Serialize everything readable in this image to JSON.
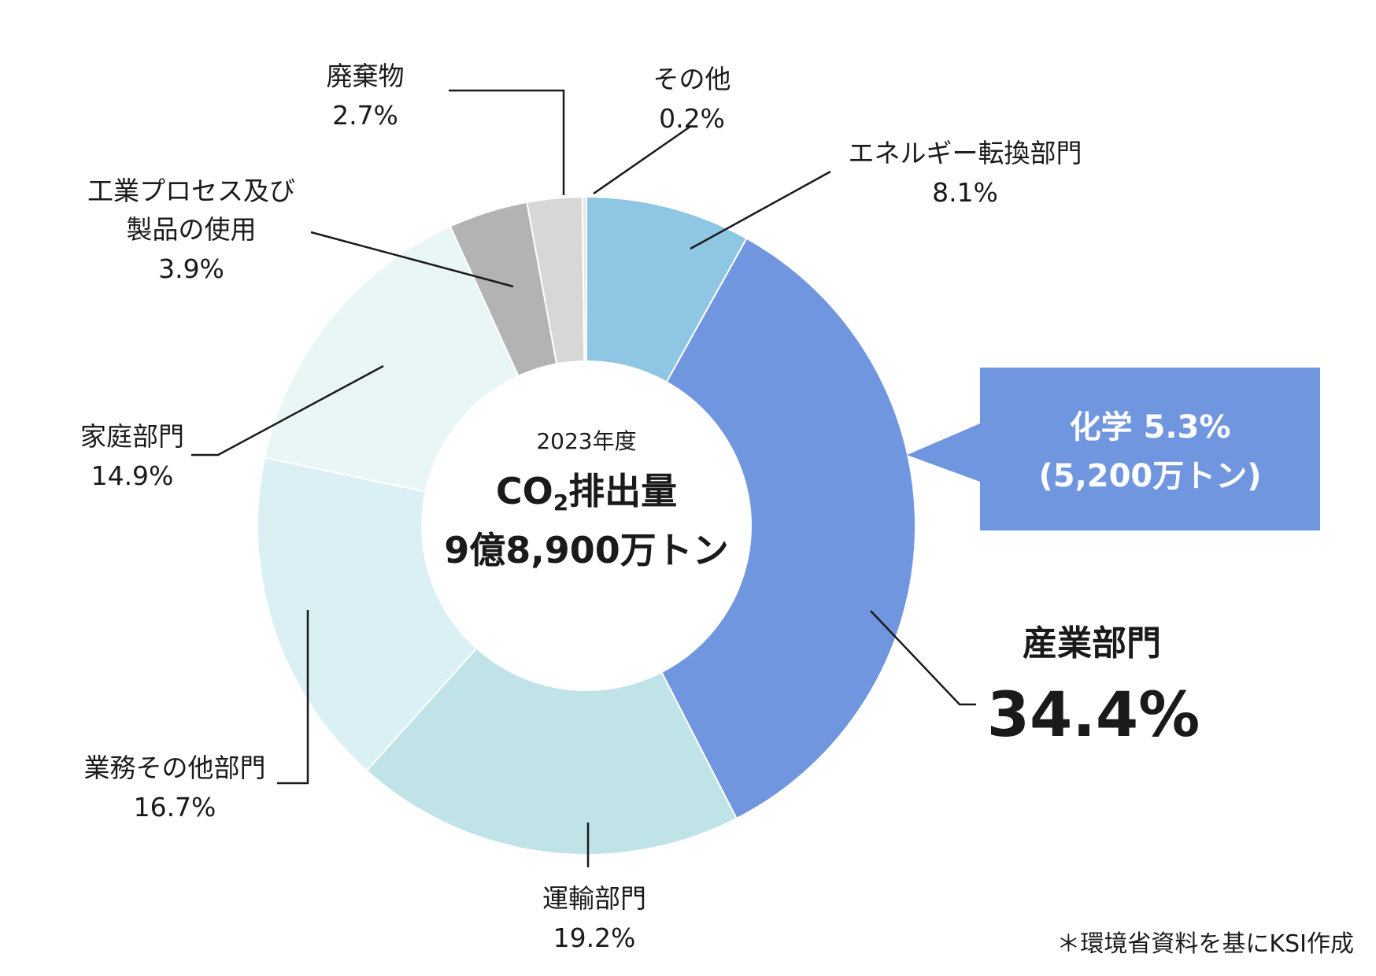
{
  "chart_data": {
    "type": "donut",
    "center": {
      "year": "2023年度",
      "title_prefix": "CO",
      "title_sub": "2",
      "title_suffix": "排出量",
      "total": "9億8,900万トン"
    },
    "slices": [
      {
        "name": "エネルギー転換部門",
        "value": 8.1,
        "label_value": "8.1%",
        "color": "#8fc6e4"
      },
      {
        "name": "産業部門",
        "value": 34.4,
        "label_value": "34.4%",
        "color": "#7196e0"
      },
      {
        "name": "運輸部門",
        "value": 19.2,
        "label_value": "19.2%",
        "color": "#c0e3e7"
      },
      {
        "name": "業務その他部門",
        "value": 16.7,
        "label_value": "16.7%",
        "color": "#dbf0f4"
      },
      {
        "name": "家庭部門",
        "value": 14.9,
        "label_value": "14.9%",
        "color": "#e9f6f6"
      },
      {
        "name": "工業プロセス及び製品の使用",
        "value": 3.9,
        "label_value": "3.9%",
        "color": "#b3b3b3"
      },
      {
        "name": "廃棄物",
        "value": 2.7,
        "label_value": "2.7%",
        "color": "#d7d7d7"
      },
      {
        "name": "その他",
        "value": 0.2,
        "label_value": "0.2%",
        "color": "#e6e6e6"
      }
    ],
    "labels": {
      "energy": {
        "name": "エネルギー転換部門",
        "value": "8.1%"
      },
      "industry": {
        "name": "産業部門",
        "value": "34.4%"
      },
      "transport": {
        "name": "運輸部門",
        "value": "19.2%"
      },
      "business": {
        "name": "業務その他部門",
        "value": "16.7%"
      },
      "household": {
        "name": "家庭部門",
        "value": "14.9%"
      },
      "process_line1": "工業プロセス及び",
      "process_line2": "製品の使用",
      "process_value": "3.9%",
      "waste": {
        "name": "廃棄物",
        "value": "2.7%"
      },
      "other": {
        "name": "その他",
        "value": "0.2%"
      }
    },
    "callout": {
      "line1": "化学 5.3%",
      "line2": "(5,200万トン)",
      "color": "#7196e0"
    }
  },
  "source_note": "＊環境省資料を基にKSI作成"
}
